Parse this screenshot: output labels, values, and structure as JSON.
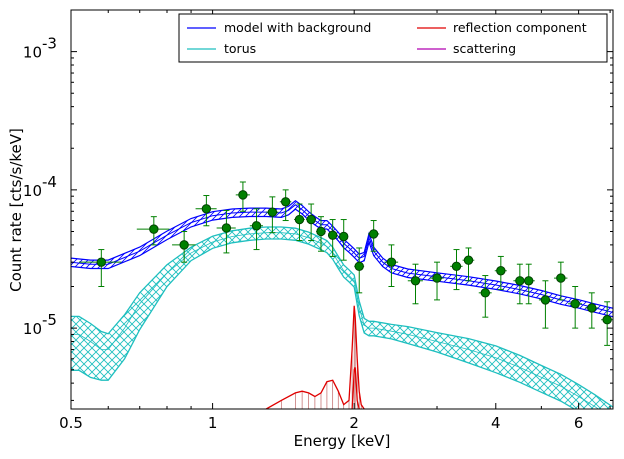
{
  "chart_data": {
    "type": "line",
    "xlabel": "Energy [keV]",
    "ylabel": "Count rate [cts/s/keV]",
    "xscale": "log",
    "yscale": "log",
    "xlim": [
      0.5,
      7.1
    ],
    "ylim": [
      2.6e-06,
      0.002
    ],
    "x_ticks": [
      {
        "value": 0.5,
        "label": "0.5"
      },
      {
        "value": 1,
        "label": "1"
      },
      {
        "value": 2,
        "label": "2"
      },
      {
        "value": 4,
        "label": "4"
      },
      {
        "value": 6,
        "label": "6"
      }
    ],
    "y_ticks": [
      {
        "value": 1e-05,
        "mantissa": "10",
        "exponent": "-5"
      },
      {
        "value": 0.0001,
        "mantissa": "10",
        "exponent": "-4"
      },
      {
        "value": 0.001,
        "mantissa": "10",
        "exponent": "-3"
      }
    ],
    "legend": {
      "placement": "top-right",
      "columns": 2,
      "entries": [
        {
          "label": "model with background",
          "color": "#0000ff"
        },
        {
          "label": "torus",
          "color": "#1fbfbf"
        },
        {
          "label": "reflection component",
          "color": "#e00000"
        },
        {
          "label": "scattering",
          "color": "#b000b0"
        }
      ]
    },
    "series": [
      {
        "name": "model with background",
        "color": "#0000ff",
        "x": [
          0.5,
          0.55,
          0.6,
          0.7,
          0.8,
          0.9,
          1.0,
          1.1,
          1.2,
          1.3,
          1.4,
          1.45,
          1.5,
          1.55,
          1.6,
          1.65,
          1.7,
          1.75,
          1.8,
          1.85,
          1.9,
          1.95,
          2.0,
          2.05,
          2.1,
          2.15,
          2.2,
          2.3,
          2.4,
          2.6,
          3.0,
          3.5,
          4.0,
          4.5,
          5.0,
          5.5,
          6.0,
          6.5,
          7.1
        ],
        "y": [
          3e-05,
          2.9e-05,
          2.9e-05,
          3.6e-05,
          4.7e-05,
          5.8e-05,
          6.5e-05,
          6.8e-05,
          6.9e-05,
          6.9e-05,
          6.8e-05,
          7.1e-05,
          7.8e-05,
          7.2e-05,
          6.5e-05,
          6e-05,
          5.6e-05,
          5.6e-05,
          5.1e-05,
          4.6e-05,
          4.1e-05,
          3.8e-05,
          3.5e-05,
          3.2e-05,
          3.3e-05,
          4.5e-05,
          3.6e-05,
          3e-05,
          2.7e-05,
          2.5e-05,
          2.35e-05,
          2.2e-05,
          2.05e-05,
          1.9e-05,
          1.75e-05,
          1.6e-05,
          1.5e-05,
          1.4e-05,
          1.3e-05
        ],
        "band": [
          0.93,
          1.07
        ]
      },
      {
        "name": "torus",
        "color": "#1fbfbf",
        "x": [
          0.5,
          0.52,
          0.55,
          0.58,
          0.6,
          0.65,
          0.7,
          0.8,
          0.9,
          1.0,
          1.1,
          1.2,
          1.3,
          1.4,
          1.5,
          1.6,
          1.7,
          1.75,
          1.8,
          1.85,
          1.9,
          1.95,
          2.0,
          2.05,
          2.1,
          2.15,
          2.2,
          2.4,
          2.6,
          3.0,
          3.5,
          4.0,
          4.5,
          5.0,
          5.5,
          6.0,
          6.5,
          7.1
        ],
        "y": [
          9e-06,
          9e-06,
          8e-06,
          7e-06,
          7e-06,
          1e-05,
          1.5e-05,
          2.5e-05,
          3.5e-05,
          4.2e-05,
          4.6e-05,
          4.8e-05,
          4.9e-05,
          4.9e-05,
          4.8e-05,
          4.5e-05,
          4.1e-05,
          3.9e-05,
          3.5e-05,
          3e-05,
          2.6e-05,
          2.4e-05,
          2.2e-05,
          1.4e-05,
          1.05e-05,
          1e-05,
          1e-05,
          9.5e-06,
          9e-06,
          8e-06,
          7e-06,
          6.1e-06,
          5.2e-06,
          4.4e-06,
          3.8e-06,
          3.2e-06,
          2.7e-06,
          2.2e-06
        ],
        "band_low": [
          0.55,
          0.55,
          0.55,
          0.6,
          0.6,
          0.6,
          0.65,
          0.8,
          0.88,
          0.9,
          0.9,
          0.9,
          0.9,
          0.9,
          0.9,
          0.9,
          0.9,
          0.9,
          0.9,
          0.9,
          0.9,
          0.9,
          0.9,
          0.88,
          0.88,
          0.88,
          0.88,
          0.88,
          0.86,
          0.84,
          0.8,
          0.78,
          0.78,
          0.78,
          0.78,
          0.78,
          0.78,
          0.78
        ],
        "band_high": [
          1.35,
          1.35,
          1.35,
          1.35,
          1.3,
          1.25,
          1.2,
          1.15,
          1.1,
          1.1,
          1.1,
          1.1,
          1.1,
          1.1,
          1.1,
          1.1,
          1.1,
          1.1,
          1.1,
          1.1,
          1.1,
          1.1,
          1.1,
          1.12,
          1.12,
          1.12,
          1.12,
          1.12,
          1.14,
          1.16,
          1.2,
          1.22,
          1.22,
          1.22,
          1.22,
          1.22,
          1.22,
          1.22
        ]
      },
      {
        "name": "reflection component",
        "color": "#e00000",
        "x": [
          1.3,
          1.4,
          1.5,
          1.55,
          1.6,
          1.65,
          1.7,
          1.75,
          1.8,
          1.85,
          1.9,
          1.95,
          1.98,
          2.0,
          2.01,
          2.03,
          2.05,
          2.07,
          2.1
        ],
        "y": [
          2.6e-06,
          3e-06,
          3.4e-06,
          3.5e-06,
          3.4e-06,
          3.2e-06,
          3.4e-06,
          4.1e-06,
          4.2e-06,
          3.5e-06,
          2.8e-06,
          3e-06,
          7e-06,
          1.45e-05,
          1.2e-05,
          6e-06,
          3.5e-06,
          2.8e-06,
          2.6e-06
        ],
        "second_peak": {
          "x": [
            1.98,
            1.99,
            2.0,
            2.01,
            2.02,
            2.03,
            2.05
          ],
          "y": [
            2.6e-06,
            3.5e-06,
            5e-06,
            5.2e-06,
            4e-06,
            3e-06,
            2.6e-06
          ]
        }
      }
    ],
    "data_points": {
      "color": "#008000",
      "edge_color": "#004000",
      "x": [
        0.58,
        0.75,
        0.87,
        0.97,
        1.07,
        1.16,
        1.24,
        1.34,
        1.43,
        1.53,
        1.62,
        1.7,
        1.8,
        1.9,
        2.05,
        2.2,
        2.4,
        2.7,
        3.0,
        3.3,
        3.5,
        3.8,
        4.1,
        4.5,
        4.7,
        5.1,
        5.5,
        5.9,
        6.4,
        6.9
      ],
      "y": [
        3e-05,
        5.2e-05,
        4e-05,
        7.3e-05,
        5.3e-05,
        9.2e-05,
        5.5e-05,
        6.9e-05,
        8.2e-05,
        6.1e-05,
        6.1e-05,
        5e-05,
        4.7e-05,
        4.6e-05,
        2.8e-05,
        4.8e-05,
        3e-05,
        2.2e-05,
        2.3e-05,
        2.8e-05,
        3.1e-05,
        1.8e-05,
        2.6e-05,
        2.2e-05,
        2.2e-05,
        1.6e-05,
        2.3e-05,
        1.5e-05,
        1.4e-05,
        1.15e-05
      ],
      "xerr_low": [
        0.06,
        0.06,
        0.05,
        0.05,
        0.05,
        0.04,
        0.04,
        0.04,
        0.04,
        0.04,
        0.04,
        0.04,
        0.04,
        0.04,
        0.05,
        0.06,
        0.08,
        0.1,
        0.1,
        0.1,
        0.1,
        0.12,
        0.12,
        0.14,
        0.14,
        0.16,
        0.18,
        0.2,
        0.2,
        0.2
      ],
      "xerr_high": [
        0.06,
        0.06,
        0.05,
        0.05,
        0.05,
        0.04,
        0.04,
        0.04,
        0.04,
        0.04,
        0.04,
        0.04,
        0.04,
        0.04,
        0.05,
        0.06,
        0.08,
        0.1,
        0.1,
        0.1,
        0.1,
        0.12,
        0.12,
        0.14,
        0.14,
        0.16,
        0.18,
        0.2,
        0.2,
        0.2
      ],
      "yerr_low": [
        1e-05,
        1.2e-05,
        1e-05,
        1.8e-05,
        1.8e-05,
        2.2e-05,
        1.8e-05,
        2e-05,
        2.2e-05,
        1.8e-05,
        1.8e-05,
        1.4e-05,
        1.4e-05,
        1.5e-05,
        1e-05,
        1.2e-05,
        1e-05,
        7e-06,
        7e-06,
        9e-06,
        9e-06,
        6e-06,
        7e-06,
        7e-06,
        7e-06,
        6e-06,
        7e-06,
        5e-06,
        4e-06,
        4e-06
      ],
      "yerr_high": [
        7e-06,
        1.2e-05,
        1e-05,
        1.8e-05,
        1.8e-05,
        2.2e-05,
        1.8e-05,
        2e-05,
        1.8e-05,
        1.8e-05,
        1.8e-05,
        1.4e-05,
        1.4e-05,
        1.5e-05,
        1e-05,
        1.2e-05,
        1e-05,
        7e-06,
        7e-06,
        9e-06,
        7e-06,
        6e-06,
        7e-06,
        7e-06,
        7e-06,
        6e-06,
        7e-06,
        5e-06,
        4e-06,
        4e-06
      ]
    }
  }
}
